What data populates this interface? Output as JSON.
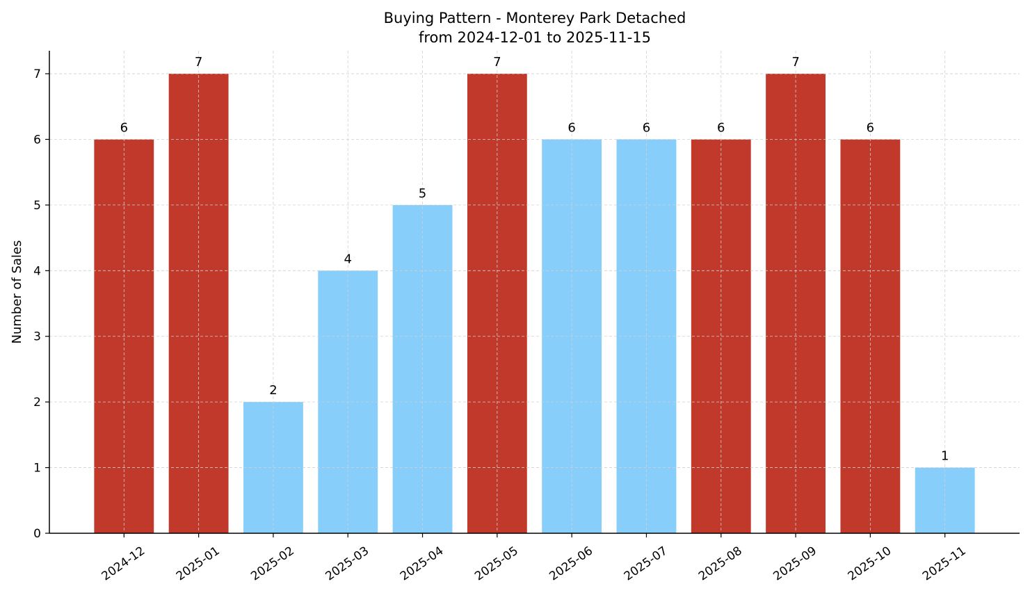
{
  "chart_data": {
    "type": "bar",
    "title": "Buying Pattern - Monterey Park Detached",
    "subtitle": "from 2024-12-01 to 2025-11-15",
    "xlabel": "",
    "ylabel": "Number of Sales",
    "categories": [
      "2024-12",
      "2025-01",
      "2025-02",
      "2025-03",
      "2025-04",
      "2025-05",
      "2025-06",
      "2025-07",
      "2025-08",
      "2025-09",
      "2025-10",
      "2025-11"
    ],
    "values": [
      6,
      7,
      2,
      4,
      5,
      7,
      6,
      6,
      6,
      7,
      6,
      1
    ],
    "bar_colors": [
      "#c0392b",
      "#c0392b",
      "#87cefa",
      "#87cefa",
      "#87cefa",
      "#c0392b",
      "#87cefa",
      "#87cefa",
      "#c0392b",
      "#c0392b",
      "#c0392b",
      "#87cefa"
    ],
    "yticks": [
      0,
      1,
      2,
      3,
      4,
      5,
      6,
      7
    ],
    "ylim": [
      0,
      7.35
    ],
    "grid": true,
    "data_labels": true
  }
}
